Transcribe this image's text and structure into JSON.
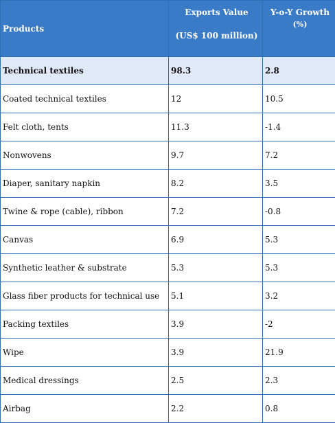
{
  "table": {
    "headers": {
      "products": "Products",
      "exports_line1": "Exports Value",
      "exports_line2": "(US$ 100 million)",
      "growth_line1": "Y-o-Y Growth",
      "growth_line2": "(%)"
    },
    "rows": [
      {
        "product": "Technical textiles",
        "value": "98.3",
        "growth": "2.8"
      },
      {
        "product": "Coated technical textiles",
        "value": "12",
        "growth": "10.5"
      },
      {
        "product": "Felt cloth, tents",
        "value": "11.3",
        "growth": "-1.4"
      },
      {
        "product": "Nonwovens",
        "value": "9.7",
        "growth": "7.2"
      },
      {
        "product": "Diaper, sanitary napkin",
        "value": "8.2",
        "growth": "3.5"
      },
      {
        "product": "Twine & rope (cable), ribbon",
        "value": "7.2",
        "growth": "-0.8"
      },
      {
        "product": "Canvas",
        "value": "6.9",
        "growth": "5.3"
      },
      {
        "product": "Synthetic leather & substrate",
        "value": "5.3",
        "growth": "5.3"
      },
      {
        "product": "Glass fiber products for technical use",
        "value": "5.1",
        "growth": "3.2"
      },
      {
        "product": "Packing textiles",
        "value": "3.9",
        "growth": "-2"
      },
      {
        "product": "Wipe",
        "value": "3.9",
        "growth": "21.9"
      },
      {
        "product": "Medical dressings",
        "value": "2.5",
        "growth": "2.3"
      },
      {
        "product": "Airbag",
        "value": "2.2",
        "growth": "0.8"
      }
    ]
  },
  "colors": {
    "header_bg": "#3a7bc8",
    "border": "#2e6fb5",
    "total_row_bg": "#dfe9f7"
  }
}
